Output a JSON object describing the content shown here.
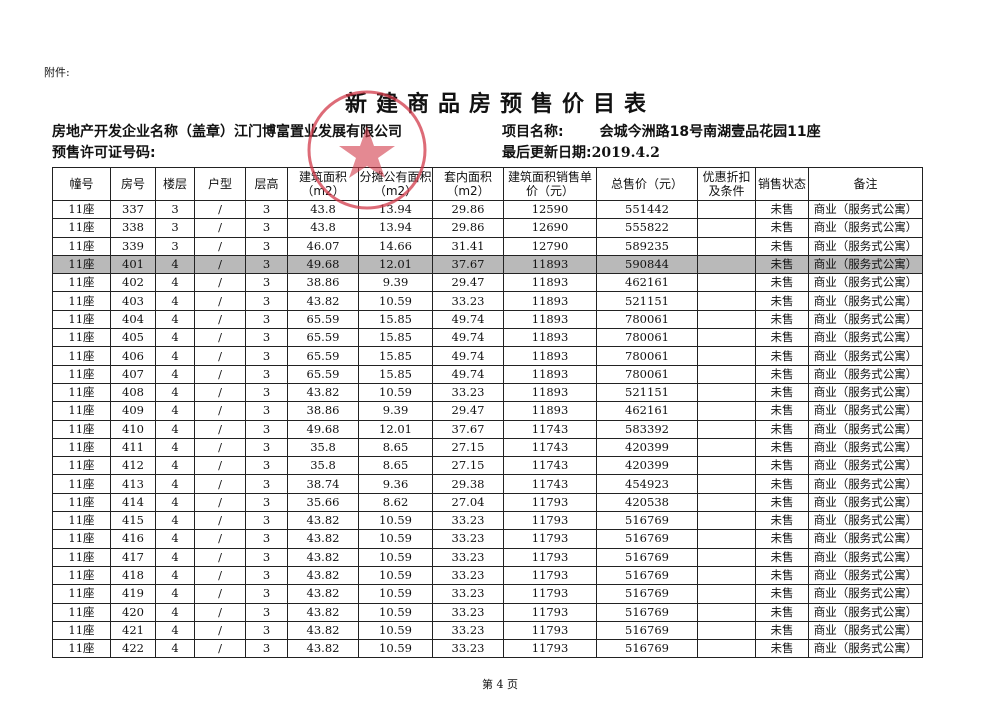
{
  "attachment_label": "附件:",
  "title": "新建商品房预售价目表",
  "developer_label": "房地产开发企业名称（盖章）",
  "developer_name": "江门博富置业发展有限公司",
  "permit_label": "预售许可证号码:",
  "project_label": "项目名称:",
  "project_name": "会城今洲路18号南湖壹品花园11座",
  "updated_label": "最后更新日期:",
  "updated_date": "2019.4.2",
  "stamp_color": "#d23a4a",
  "highlight_color": "#b9b9b9",
  "table": {
    "headers": [
      "幢号",
      "房号",
      "楼层",
      "户型",
      "层高",
      "建筑面积（m2）",
      "分摊公有面积（m2）",
      "套内面积（m2）",
      "建筑面积销售单价（元）",
      "总售价（元）",
      "优惠折扣及条件",
      "销售状态",
      "备注"
    ],
    "highlighted_row": "401",
    "rows": [
      [
        "11座",
        "337",
        "3",
        "/",
        "3",
        "43.8",
        "13.94",
        "29.86",
        "12590",
        "551442",
        "",
        "未售",
        "商业（服务式公寓）"
      ],
      [
        "11座",
        "338",
        "3",
        "/",
        "3",
        "43.8",
        "13.94",
        "29.86",
        "12690",
        "555822",
        "",
        "未售",
        "商业（服务式公寓）"
      ],
      [
        "11座",
        "339",
        "3",
        "/",
        "3",
        "46.07",
        "14.66",
        "31.41",
        "12790",
        "589235",
        "",
        "未售",
        "商业（服务式公寓）"
      ],
      [
        "11座",
        "401",
        "4",
        "/",
        "3",
        "49.68",
        "12.01",
        "37.67",
        "11893",
        "590844",
        "",
        "未售",
        "商业（服务式公寓）"
      ],
      [
        "11座",
        "402",
        "4",
        "/",
        "3",
        "38.86",
        "9.39",
        "29.47",
        "11893",
        "462161",
        "",
        "未售",
        "商业（服务式公寓）"
      ],
      [
        "11座",
        "403",
        "4",
        "/",
        "3",
        "43.82",
        "10.59",
        "33.23",
        "11893",
        "521151",
        "",
        "未售",
        "商业（服务式公寓）"
      ],
      [
        "11座",
        "404",
        "4",
        "/",
        "3",
        "65.59",
        "15.85",
        "49.74",
        "11893",
        "780061",
        "",
        "未售",
        "商业（服务式公寓）"
      ],
      [
        "11座",
        "405",
        "4",
        "/",
        "3",
        "65.59",
        "15.85",
        "49.74",
        "11893",
        "780061",
        "",
        "未售",
        "商业（服务式公寓）"
      ],
      [
        "11座",
        "406",
        "4",
        "/",
        "3",
        "65.59",
        "15.85",
        "49.74",
        "11893",
        "780061",
        "",
        "未售",
        "商业（服务式公寓）"
      ],
      [
        "11座",
        "407",
        "4",
        "/",
        "3",
        "65.59",
        "15.85",
        "49.74",
        "11893",
        "780061",
        "",
        "未售",
        "商业（服务式公寓）"
      ],
      [
        "11座",
        "408",
        "4",
        "/",
        "3",
        "43.82",
        "10.59",
        "33.23",
        "11893",
        "521151",
        "",
        "未售",
        "商业（服务式公寓）"
      ],
      [
        "11座",
        "409",
        "4",
        "/",
        "3",
        "38.86",
        "9.39",
        "29.47",
        "11893",
        "462161",
        "",
        "未售",
        "商业（服务式公寓）"
      ],
      [
        "11座",
        "410",
        "4",
        "/",
        "3",
        "49.68",
        "12.01",
        "37.67",
        "11743",
        "583392",
        "",
        "未售",
        "商业（服务式公寓）"
      ],
      [
        "11座",
        "411",
        "4",
        "/",
        "3",
        "35.8",
        "8.65",
        "27.15",
        "11743",
        "420399",
        "",
        "未售",
        "商业（服务式公寓）"
      ],
      [
        "11座",
        "412",
        "4",
        "/",
        "3",
        "35.8",
        "8.65",
        "27.15",
        "11743",
        "420399",
        "",
        "未售",
        "商业（服务式公寓）"
      ],
      [
        "11座",
        "413",
        "4",
        "/",
        "3",
        "38.74",
        "9.36",
        "29.38",
        "11743",
        "454923",
        "",
        "未售",
        "商业（服务式公寓）"
      ],
      [
        "11座",
        "414",
        "4",
        "/",
        "3",
        "35.66",
        "8.62",
        "27.04",
        "11793",
        "420538",
        "",
        "未售",
        "商业（服务式公寓）"
      ],
      [
        "11座",
        "415",
        "4",
        "/",
        "3",
        "43.82",
        "10.59",
        "33.23",
        "11793",
        "516769",
        "",
        "未售",
        "商业（服务式公寓）"
      ],
      [
        "11座",
        "416",
        "4",
        "/",
        "3",
        "43.82",
        "10.59",
        "33.23",
        "11793",
        "516769",
        "",
        "未售",
        "商业（服务式公寓）"
      ],
      [
        "11座",
        "417",
        "4",
        "/",
        "3",
        "43.82",
        "10.59",
        "33.23",
        "11793",
        "516769",
        "",
        "未售",
        "商业（服务式公寓）"
      ],
      [
        "11座",
        "418",
        "4",
        "/",
        "3",
        "43.82",
        "10.59",
        "33.23",
        "11793",
        "516769",
        "",
        "未售",
        "商业（服务式公寓）"
      ],
      [
        "11座",
        "419",
        "4",
        "/",
        "3",
        "43.82",
        "10.59",
        "33.23",
        "11793",
        "516769",
        "",
        "未售",
        "商业（服务式公寓）"
      ],
      [
        "11座",
        "420",
        "4",
        "/",
        "3",
        "43.82",
        "10.59",
        "33.23",
        "11793",
        "516769",
        "",
        "未售",
        "商业（服务式公寓）"
      ],
      [
        "11座",
        "421",
        "4",
        "/",
        "3",
        "43.82",
        "10.59",
        "33.23",
        "11793",
        "516769",
        "",
        "未售",
        "商业（服务式公寓）"
      ],
      [
        "11座",
        "422",
        "4",
        "/",
        "3",
        "43.82",
        "10.59",
        "33.23",
        "11793",
        "516769",
        "",
        "未售",
        "商业（服务式公寓）"
      ]
    ]
  },
  "footer": "第 4 页"
}
